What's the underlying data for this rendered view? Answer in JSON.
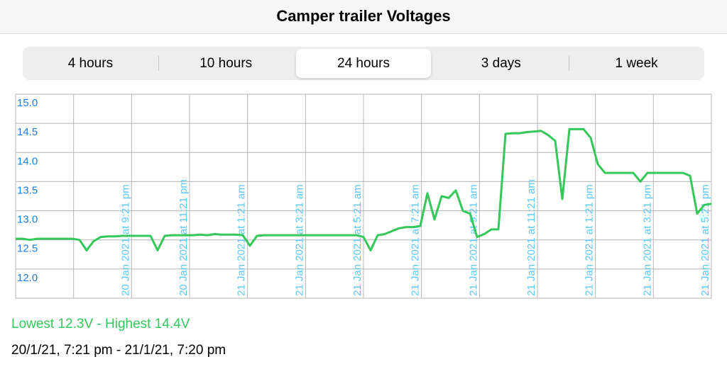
{
  "header": {
    "title": "Camper trailer Voltages"
  },
  "tabs": [
    "4 hours",
    "10 hours",
    "24 hours",
    "3 days",
    "1 week"
  ],
  "selected_tab": 2,
  "chart_data": {
    "type": "line",
    "color": "#34c759",
    "values": [
      12.52,
      12.52,
      12.5,
      12.52,
      12.52,
      12.52,
      12.52,
      12.52,
      12.52,
      12.5,
      12.32,
      12.48,
      12.55,
      12.56,
      12.56,
      12.57,
      12.57,
      12.57,
      12.57,
      12.57,
      12.32,
      12.57,
      12.58,
      12.58,
      12.58,
      12.58,
      12.59,
      12.58,
      12.6,
      12.59,
      12.59,
      12.59,
      12.58,
      12.4,
      12.57,
      12.58,
      12.58,
      12.58,
      12.58,
      12.58,
      12.58,
      12.58,
      12.58,
      12.58,
      12.58,
      12.58,
      12.58,
      12.58,
      12.58,
      12.55,
      12.32,
      12.58,
      12.6,
      12.65,
      12.7,
      12.72,
      12.72,
      12.74,
      13.3,
      12.85,
      13.25,
      13.22,
      13.35,
      13.0,
      12.95,
      12.55,
      12.6,
      12.68,
      12.68,
      14.32,
      14.33,
      14.33,
      14.35,
      14.36,
      14.37,
      14.3,
      14.2,
      13.2,
      14.4,
      14.4,
      14.4,
      14.25,
      13.8,
      13.65,
      13.65,
      13.65,
      13.65,
      13.65,
      13.5,
      13.65,
      13.65,
      13.65,
      13.65,
      13.65,
      13.65,
      13.6,
      12.95,
      13.1,
      13.12
    ],
    "x_labels": [
      "20 Jan 2021 at 9:21 pm",
      "20 Jan 2021 at 11:21 pm",
      "21 Jan 2021 at 1:21 am",
      "21 Jan 2021 at 3:21 am",
      "21 Jan 2021 at 5:21 am",
      "21 Jan 2021 at 7:21 am",
      "21 Jan 2021 at 9:21 am",
      "21 Jan 2021 at 11:21 am",
      "21 Jan 2021 at 1:21 pm",
      "21 Jan 2021 at 3:21 pm",
      "21 Jan 2021 at 5:21 pm"
    ],
    "ylim": [
      11.5,
      15.0
    ],
    "yticks": [
      {
        "value": 12,
        "label": "12.0"
      },
      12.5,
      {
        "value": 13,
        "label": "13.0"
      },
      13.5,
      {
        "value": 14,
        "label": "14.0"
      },
      14.5,
      {
        "value": 15,
        "label": "15.0"
      }
    ],
    "grid": true
  },
  "footer": {
    "range_text": "Lowest 12.3V - Highest 14.4V",
    "period_text": "20/1/21, 7:21 pm - 21/1/21, 7:20 pm"
  }
}
